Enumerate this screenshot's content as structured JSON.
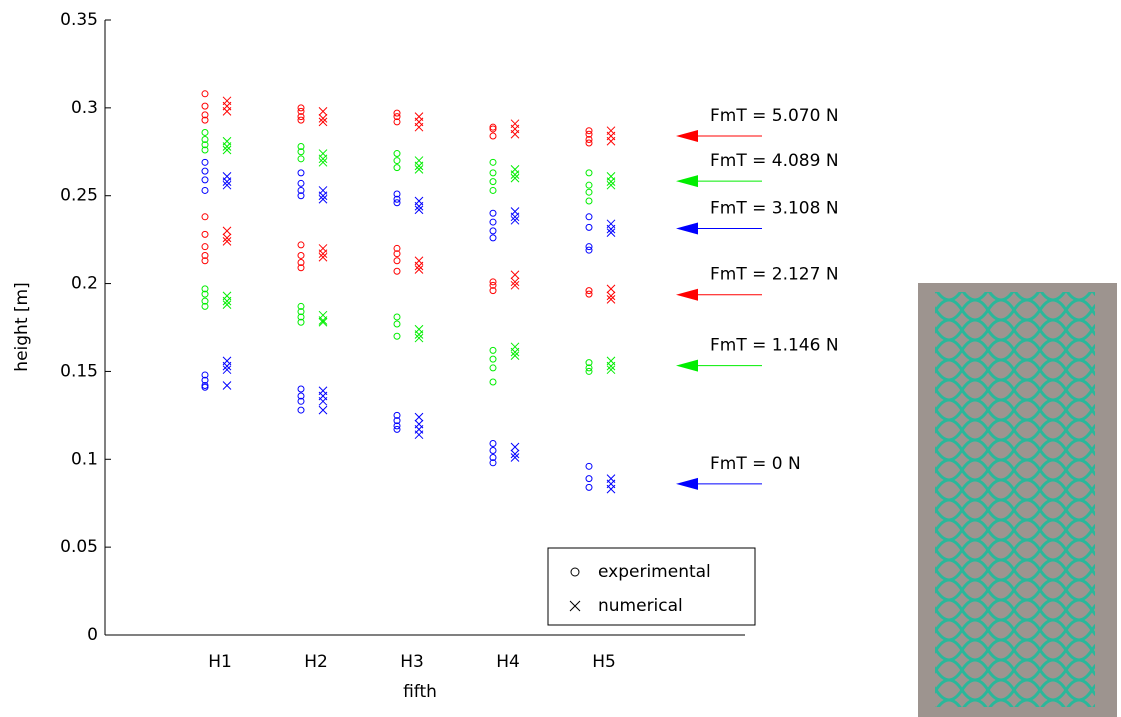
{
  "chart_data": {
    "type": "scatter",
    "xlabel": "fifth",
    "ylabel": "height [m]",
    "categories": [
      "H1",
      "H2",
      "H3",
      "H4",
      "H5"
    ],
    "ylim": [
      0,
      0.35
    ],
    "yticks": [
      0,
      0.05,
      0.1,
      0.15,
      0.2,
      0.25,
      0.3,
      0.35
    ],
    "legend": [
      {
        "name": "experimental",
        "marker": "circle"
      },
      {
        "name": "numerical",
        "marker": "cross"
      }
    ],
    "groups": [
      {
        "label": "FmT = 5.070 N",
        "color": "#ff0000",
        "experimental": [
          [
            0.308,
            0.301,
            0.296,
            0.293
          ],
          [
            0.3,
            0.298,
            0.295,
            0.293
          ],
          [
            0.297,
            0.295,
            0.292
          ],
          [
            0.289,
            0.288,
            0.284
          ],
          [
            0.287,
            0.285,
            0.282,
            0.28
          ]
        ],
        "numerical": [
          [
            0.304,
            0.301,
            0.298
          ],
          [
            0.298,
            0.294,
            0.292
          ],
          [
            0.295,
            0.292,
            0.289
          ],
          [
            0.291,
            0.288,
            0.285
          ],
          [
            0.287,
            0.284,
            0.281
          ]
        ]
      },
      {
        "label": "FmT = 4.089 N",
        "color": "#00ee00",
        "experimental": [
          [
            0.286,
            0.282,
            0.279,
            0.276
          ],
          [
            0.278,
            0.275,
            0.271
          ],
          [
            0.274,
            0.27,
            0.266
          ],
          [
            0.269,
            0.263,
            0.258,
            0.253
          ],
          [
            0.263,
            0.256,
            0.252,
            0.247
          ]
        ],
        "numerical": [
          [
            0.281,
            0.278,
            0.276
          ],
          [
            0.274,
            0.271,
            0.269
          ],
          [
            0.27,
            0.267,
            0.265
          ],
          [
            0.265,
            0.262,
            0.26
          ],
          [
            0.261,
            0.258,
            0.256
          ]
        ]
      },
      {
        "label": "FmT = 3.108 N",
        "color": "#0000ff",
        "experimental": [
          [
            0.269,
            0.264,
            0.259,
            0.253
          ],
          [
            0.263,
            0.257,
            0.253,
            0.25
          ],
          [
            0.251,
            0.248,
            0.246
          ],
          [
            0.24,
            0.235,
            0.23,
            0.226
          ],
          [
            0.238,
            0.232,
            0.221,
            0.219
          ]
        ],
        "numerical": [
          [
            0.261,
            0.258,
            0.256
          ],
          [
            0.253,
            0.25,
            0.248
          ],
          [
            0.247,
            0.244,
            0.242
          ],
          [
            0.241,
            0.238,
            0.236
          ],
          [
            0.234,
            0.231,
            0.229
          ]
        ]
      },
      {
        "label": "FmT = 2.127 N",
        "color": "#ff0000",
        "experimental": [
          [
            0.238,
            0.228,
            0.221,
            0.216,
            0.213
          ],
          [
            0.222,
            0.216,
            0.212,
            0.209
          ],
          [
            0.22,
            0.217,
            0.213,
            0.207
          ],
          [
            0.201,
            0.199,
            0.196
          ],
          [
            0.196,
            0.194
          ]
        ],
        "numerical": [
          [
            0.23,
            0.226,
            0.224
          ],
          [
            0.22,
            0.217,
            0.215
          ],
          [
            0.213,
            0.21,
            0.208
          ],
          [
            0.205,
            0.201,
            0.199
          ],
          [
            0.197,
            0.193,
            0.191
          ]
        ]
      },
      {
        "label": "FmT = 1.146 N",
        "color": "#00ee00",
        "experimental": [
          [
            0.197,
            0.194,
            0.19,
            0.187
          ],
          [
            0.187,
            0.184,
            0.181,
            0.178
          ],
          [
            0.181,
            0.177,
            0.17
          ],
          [
            0.162,
            0.157,
            0.152,
            0.144
          ],
          [
            0.155,
            0.152,
            0.15
          ]
        ],
        "numerical": [
          [
            0.193,
            0.19,
            0.188
          ],
          [
            0.182,
            0.179,
            0.178
          ],
          [
            0.174,
            0.171,
            0.169
          ],
          [
            0.164,
            0.161,
            0.159
          ],
          [
            0.156,
            0.153,
            0.151
          ]
        ]
      },
      {
        "label": "FmT = 0 N",
        "color": "#0000ff",
        "experimental": [
          [
            0.148,
            0.145,
            0.142,
            0.141
          ],
          [
            0.14,
            0.136,
            0.133,
            0.128
          ],
          [
            0.125,
            0.122,
            0.119,
            0.117
          ],
          [
            0.109,
            0.105,
            0.101,
            0.098
          ],
          [
            0.096,
            0.089,
            0.084
          ]
        ],
        "numerical": [
          [
            0.156,
            0.153,
            0.151,
            0.142
          ],
          [
            0.139,
            0.136,
            0.133,
            0.128
          ],
          [
            0.124,
            0.12,
            0.117,
            0.114
          ],
          [
            0.107,
            0.103,
            0.101
          ],
          [
            0.089,
            0.086,
            0.083
          ]
        ]
      }
    ]
  }
}
